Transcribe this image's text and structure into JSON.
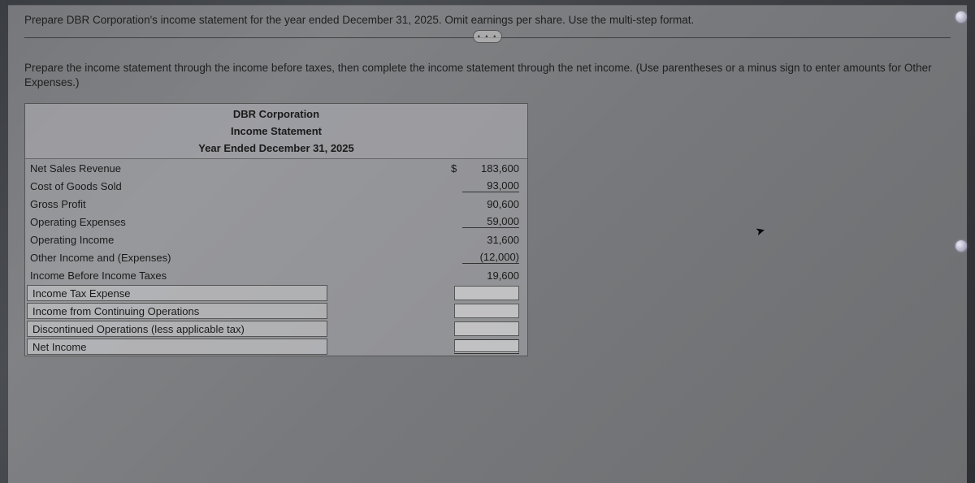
{
  "prompt": "Prepare DBR Corporation's income statement for the year ended December 31, 2025. Omit earnings per share. Use the multi-step format.",
  "separator_label": "• • •",
  "instruction_main": "Prepare the income statement through the income before taxes, then complete the income statement through the net income. (Use parentheses or a minus sign to enter amounts for Other Expenses.)",
  "header": {
    "company": "DBR Corporation",
    "title": "Income Statement",
    "period": "Year Ended December 31, 2025"
  },
  "rows": {
    "net_sales_label": "Net Sales Revenue",
    "net_sales_value": "183,600",
    "cogs_label": "Cost of Goods Sold",
    "cogs_value": "93,000",
    "gross_profit_label": "Gross Profit",
    "gross_profit_value": "90,600",
    "opex_label": "Operating Expenses",
    "opex_value": "59,000",
    "op_income_label": "Operating Income",
    "op_income_value": "31,600",
    "other_label": "Other Income and (Expenses)",
    "other_value": "(12,000)",
    "before_tax_label": "Income Before Income Taxes",
    "before_tax_value": "19,600",
    "tax_label": "Income Tax Expense",
    "cont_ops_label": "Income from Continuing Operations",
    "disc_ops_label": "Discontinued Operations (less applicable tax)",
    "net_income_label": "Net Income"
  },
  "colors": {
    "background_overlay": "rgba(230,230,230,0.35)",
    "box_border": "#555",
    "text": "#1a1a1a"
  }
}
